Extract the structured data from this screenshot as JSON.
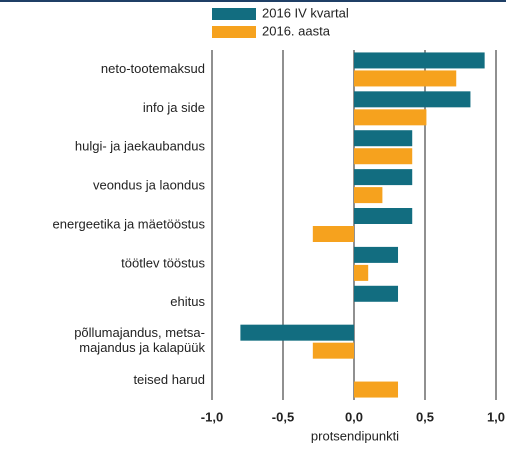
{
  "chart_data": {
    "type": "barh",
    "categories": [
      "neto-tootemaksud",
      "info ja side",
      "hulgi- ja jaekaubandus",
      "veondus ja laondus",
      "energeetika ja mäetööstus",
      "töötlev tööstus",
      "ehitus",
      "põllumajandus, metsa-\nmajandus ja kalapüük",
      "teised harud"
    ],
    "series": [
      {
        "name": "2016 IV kvartal",
        "color": "#126d80",
        "values": [
          0.92,
          0.82,
          0.41,
          0.41,
          0.41,
          0.31,
          0.31,
          -0.8,
          null
        ]
      },
      {
        "name": "2016. aasta",
        "color": "#f6a21e",
        "values": [
          0.72,
          0.51,
          0.41,
          0.2,
          -0.29,
          0.1,
          null,
          -0.29,
          0.31
        ]
      }
    ],
    "xlim": [
      -1.0,
      1.0
    ],
    "xticks": [
      {
        "value": -1.0,
        "label": "-1,0"
      },
      {
        "value": -0.5,
        "label": "-0,5"
      },
      {
        "value": 0.0,
        "label": "0,0"
      },
      {
        "value": 0.5,
        "label": "0,5"
      },
      {
        "value": 1.0,
        "label": "1,0"
      }
    ],
    "xlabel": "protsendipunkti",
    "grid": true
  }
}
